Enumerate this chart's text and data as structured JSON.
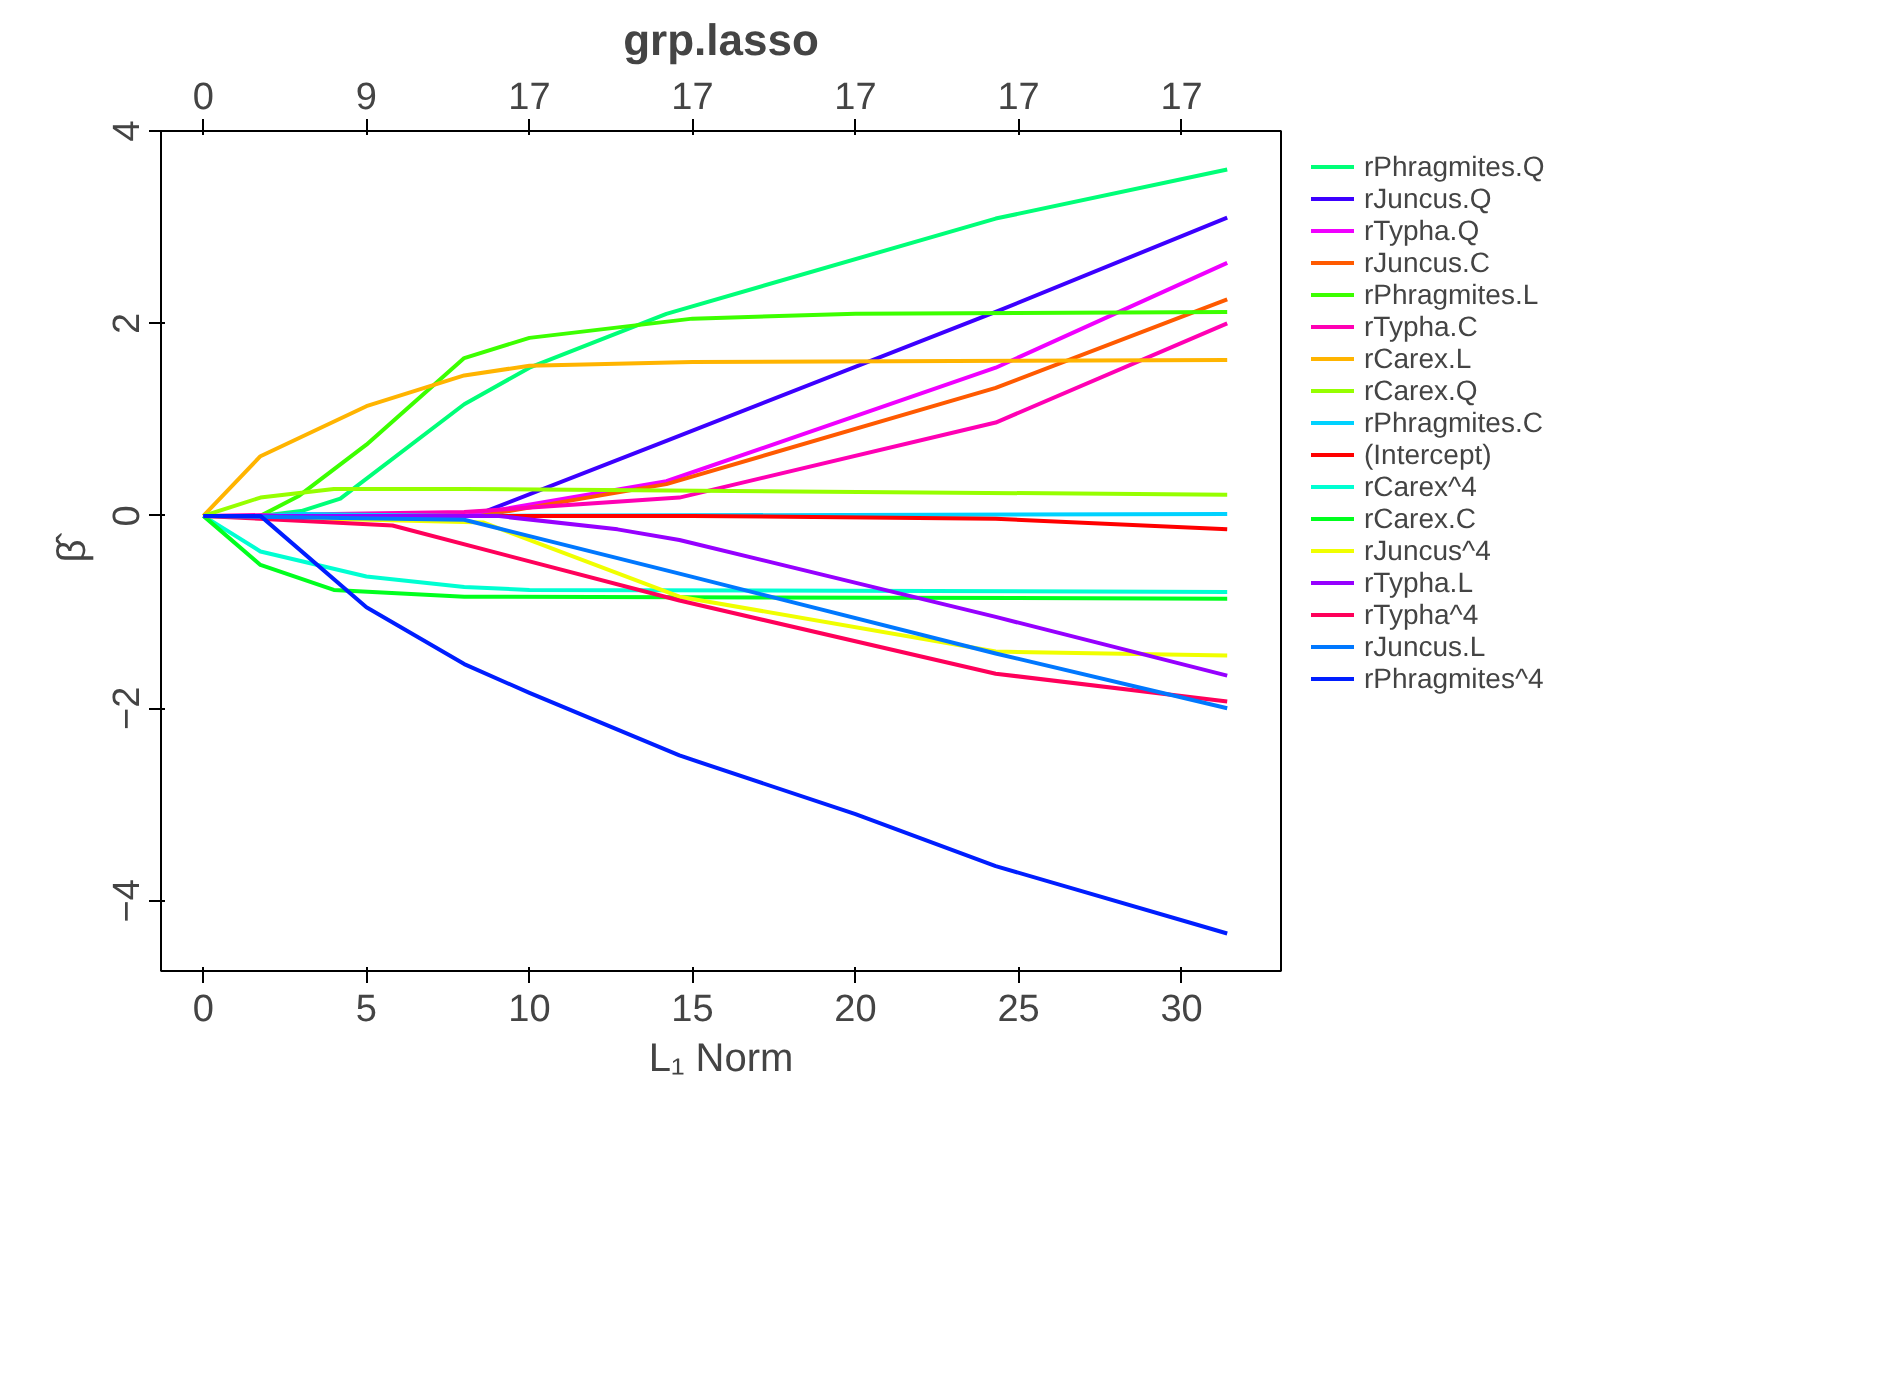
{
  "chart_data": {
    "type": "line",
    "title": "grp.lasso",
    "xlabel": "L₁ Norm",
    "ylabel": "β̂",
    "xlim": [
      -1.3,
      33.05
    ],
    "ylim": [
      -4.73,
      4
    ],
    "xticks": [
      0,
      5,
      10,
      15,
      20,
      25,
      30
    ],
    "yticks": [
      -4,
      -2,
      0,
      2,
      4
    ],
    "annotations": [
      "0",
      "9",
      "17",
      "17",
      "17",
      "17",
      "17"
    ],
    "grid": false,
    "legend": "right",
    "marker": "none",
    "line_style": "solid",
    "series": [
      {
        "name": "rPhragmites.Q",
        "color": "#00ff78",
        "x": [
          0,
          1.75,
          3,
          4.2,
          8,
          10,
          14.2,
          24.3,
          31.4
        ],
        "values": [
          0,
          0,
          0.05,
          0.18,
          1.16,
          1.54,
          2.1,
          3.09,
          3.6
        ]
      },
      {
        "name": "rJuncus.Q",
        "color": "#3c00ff",
        "x": [
          0,
          8.3,
          14.2,
          24.3,
          31.4
        ],
        "values": [
          0,
          0,
          0.78,
          2.12,
          3.1
        ]
      },
      {
        "name": "rTypha.Q",
        "color": "#f000ff",
        "x": [
          0,
          8,
          14.2,
          24.3,
          31.4
        ],
        "values": [
          0,
          0,
          0.36,
          1.54,
          2.63
        ]
      },
      {
        "name": "rJuncus.C",
        "color": "#ff5a00",
        "x": [
          0,
          8.5,
          14.2,
          24.3,
          31.4
        ],
        "values": [
          0,
          0,
          0.33,
          1.33,
          2.25
        ]
      },
      {
        "name": "rPhragmites.L",
        "color": "#3cff00",
        "x": [
          0,
          1.75,
          2.94,
          5,
          8,
          10,
          15,
          20,
          31.4
        ],
        "values": [
          0,
          0,
          0.21,
          0.74,
          1.64,
          1.85,
          2.05,
          2.1,
          2.12
        ]
      },
      {
        "name": "rTypha.C",
        "color": "#ff00b4",
        "x": [
          0,
          4,
          8,
          14.6,
          24.3,
          31.4
        ],
        "values": [
          0,
          0.02,
          0.04,
          0.19,
          0.97,
          2.0
        ]
      },
      {
        "name": "rCarex.L",
        "color": "#ffb400",
        "x": [
          0,
          1.75,
          5,
          8,
          10,
          15,
          31.4
        ],
        "values": [
          0,
          0.62,
          1.14,
          1.46,
          1.56,
          1.6,
          1.62
        ]
      },
      {
        "name": "rCarex.Q",
        "color": "#96ff00",
        "x": [
          0,
          1.75,
          4,
          8,
          31.4
        ],
        "values": [
          0,
          0.19,
          0.28,
          0.28,
          0.22
        ]
      },
      {
        "name": "rPhragmites.C",
        "color": "#00d2ff",
        "x": [
          0,
          1.75,
          3,
          8,
          31.4
        ],
        "values": [
          0,
          0,
          0.02,
          0,
          0.02
        ]
      },
      {
        "name": "(Intercept)",
        "color": "#ff0000",
        "x": [
          0,
          15,
          24.3,
          31.4
        ],
        "values": [
          0,
          0,
          -0.03,
          -0.14
        ]
      },
      {
        "name": "rCarex^4",
        "color": "#00ffd2",
        "x": [
          0,
          1.75,
          5,
          8,
          10,
          31.4
        ],
        "values": [
          0,
          -0.37,
          -0.63,
          -0.74,
          -0.77,
          -0.79
        ]
      },
      {
        "name": "rCarex.C",
        "color": "#00ff1e",
        "x": [
          0,
          1.75,
          4,
          8,
          31.4
        ],
        "values": [
          0,
          -0.51,
          -0.77,
          -0.84,
          -0.86
        ]
      },
      {
        "name": "rJuncus^4",
        "color": "#f0ff00",
        "x": [
          0,
          8.6,
          14.6,
          24.3,
          31.4
        ],
        "values": [
          0,
          -0.07,
          -0.84,
          -1.41,
          -1.45
        ]
      },
      {
        "name": "rTypha.L",
        "color": "#9600ff",
        "x": [
          0,
          9,
          12.7,
          14.6,
          24.3,
          31.4
        ],
        "values": [
          0,
          0,
          -0.14,
          -0.25,
          -1.05,
          -1.66
        ]
      },
      {
        "name": "rTypha^4",
        "color": "#ff005a",
        "x": [
          0,
          5.8,
          14.6,
          24.3,
          31.4
        ],
        "values": [
          0,
          -0.1,
          -0.88,
          -1.64,
          -1.93
        ]
      },
      {
        "name": "rJuncus.L",
        "color": "#0078ff",
        "x": [
          0,
          8,
          14.6,
          24.3,
          31.4
        ],
        "values": [
          0,
          -0.04,
          -0.6,
          -1.43,
          -2.0
        ]
      },
      {
        "name": "rPhragmites^4",
        "color": "#001eff",
        "x": [
          0,
          1.75,
          5,
          8,
          10,
          14.6,
          20,
          24.3,
          31.4
        ],
        "values": [
          0,
          0,
          -0.95,
          -1.54,
          -1.84,
          -2.49,
          -3.1,
          -3.64,
          -4.34
        ]
      }
    ]
  }
}
